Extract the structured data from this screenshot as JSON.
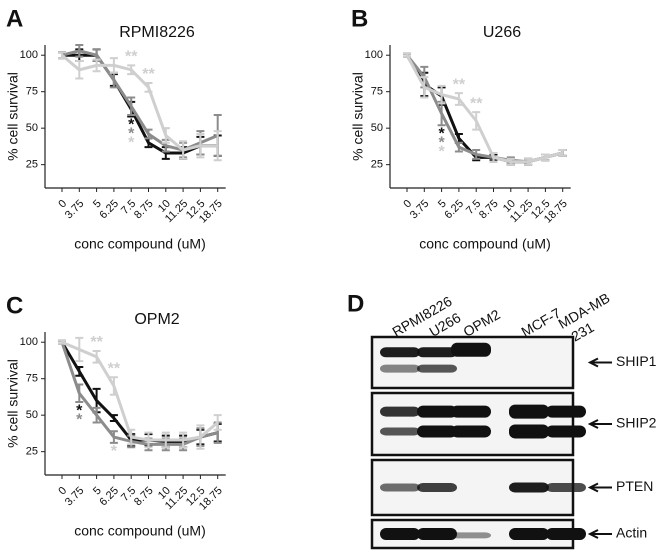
{
  "chart_data": [
    {
      "type": "line",
      "panel_label": "A",
      "title": "RPMI8226",
      "y_label": "% cell survival",
      "x_label": "conc compound (uM)",
      "categories": [
        "0",
        "3.75",
        "5",
        "6.25",
        "7.5",
        "8.75",
        "10",
        "11.25",
        "12.5",
        "18.75"
      ],
      "ylim": [
        9,
        107
      ],
      "yticks": [
        25,
        50,
        75,
        100
      ],
      "series": [
        {
          "color": "#111111",
          "values": [
            100,
            100,
            100,
            83,
            63,
            40,
            33,
            33,
            38,
            38
          ],
          "errors": [
            2,
            4,
            4,
            4,
            5,
            3,
            4,
            4,
            6,
            7
          ]
        },
        {
          "color": "#8c8c8c",
          "values": [
            100,
            103,
            100,
            83,
            65,
            46,
            38,
            35,
            40,
            45
          ],
          "errors": [
            2,
            4,
            4,
            5,
            6,
            3,
            4,
            5,
            8,
            14
          ]
        },
        {
          "color": "#cfcfcf",
          "values": [
            100,
            90,
            93,
            93,
            90,
            78,
            45,
            35,
            38,
            38
          ],
          "errors": [
            2,
            6,
            4,
            5,
            3,
            3,
            5,
            6,
            8,
            10
          ]
        }
      ],
      "annotations": [
        {
          "text": "**",
          "category": "7.5",
          "series": 2,
          "position": "above"
        },
        {
          "text": "**",
          "category": "8.75",
          "series": 2,
          "position": "above"
        },
        {
          "text": "*",
          "category": "7.5",
          "series": 0,
          "position": "below"
        },
        {
          "text": "*",
          "category": "7.5",
          "series": 1,
          "position": "below"
        },
        {
          "text": "*",
          "category": "7.5",
          "series": 2,
          "position": "below"
        }
      ]
    },
    {
      "type": "line",
      "panel_label": "B",
      "title": "U266",
      "y_label": "% cell survival",
      "x_label": "conc compound (uM)",
      "categories": [
        "0",
        "3.75",
        "5",
        "6.25",
        "7.5",
        "8.75",
        "10",
        "11.25",
        "12.5",
        "18.75"
      ],
      "ylim": [
        9,
        107
      ],
      "yticks": [
        25,
        50,
        75,
        100
      ],
      "series": [
        {
          "color": "#111111",
          "values": [
            100,
            80,
            72,
            43,
            30,
            30,
            27,
            27,
            30,
            33
          ],
          "errors": [
            1,
            8,
            6,
            3,
            2,
            2,
            2,
            2,
            2,
            2
          ]
        },
        {
          "color": "#8c8c8c",
          "values": [
            100,
            85,
            60,
            37,
            32,
            30,
            28,
            27,
            30,
            33
          ],
          "errors": [
            1,
            7,
            8,
            3,
            3,
            3,
            2,
            2,
            2,
            2
          ]
        },
        {
          "color": "#cfcfcf",
          "values": [
            100,
            78,
            73,
            70,
            55,
            30,
            27,
            27,
            30,
            33
          ],
          "errors": [
            1,
            7,
            6,
            4,
            6,
            3,
            2,
            2,
            2,
            2
          ]
        }
      ],
      "annotations": [
        {
          "text": "**",
          "category": "6.25",
          "series": 2,
          "position": "above"
        },
        {
          "text": "**",
          "category": "7.5",
          "series": 2,
          "position": "above"
        },
        {
          "text": "*",
          "category": "5",
          "series": 0,
          "position": "below"
        },
        {
          "text": "*",
          "category": "5",
          "series": 1,
          "position": "below"
        },
        {
          "text": "*",
          "category": "5",
          "series": 2,
          "position": "below"
        }
      ]
    },
    {
      "type": "line",
      "panel_label": "C",
      "title": "OPM2",
      "y_label": "% cell survival",
      "x_label": "conc compound (uM)",
      "categories": [
        "0",
        "3.75",
        "5",
        "6.25",
        "7.5",
        "8.75",
        "10",
        "11.25",
        "12.5",
        "18.75"
      ],
      "ylim": [
        9,
        107
      ],
      "yticks": [
        25,
        50,
        75,
        100
      ],
      "series": [
        {
          "color": "#111111",
          "values": [
            100,
            80,
            60,
            48,
            33,
            33,
            32,
            32,
            35,
            38
          ],
          "errors": [
            1,
            3,
            8,
            2,
            4,
            4,
            4,
            4,
            5,
            6
          ]
        },
        {
          "color": "#8c8c8c",
          "values": [
            100,
            65,
            50,
            35,
            32,
            30,
            30,
            30,
            35,
            38
          ],
          "errors": [
            1,
            6,
            5,
            4,
            4,
            4,
            4,
            4,
            6,
            7
          ]
        },
        {
          "color": "#cfcfcf",
          "values": [
            100,
            95,
            90,
            70,
            35,
            33,
            33,
            33,
            35,
            45
          ],
          "errors": [
            1,
            8,
            4,
            6,
            5,
            5,
            5,
            5,
            8,
            5
          ]
        }
      ],
      "annotations": [
        {
          "text": "**",
          "category": "5",
          "series": 2,
          "position": "above"
        },
        {
          "text": "**",
          "category": "6.25",
          "series": 2,
          "position": "above"
        },
        {
          "text": "*",
          "category": "3.75",
          "series": 0,
          "position": "below"
        },
        {
          "text": "*",
          "category": "3.75",
          "series": 1,
          "position": "below"
        },
        {
          "text": "*",
          "category": "6.25",
          "series": 2,
          "position": "below"
        }
      ]
    }
  ],
  "blot": {
    "panel_label": "D",
    "lanes": [
      "RPMI8226",
      "U266",
      "OPM2",
      "MCF-7",
      [
        "MDA-MB",
        "-231"
      ]
    ],
    "rows": [
      "SHIP1",
      "SHIP2",
      "PTEN",
      "Actin"
    ]
  }
}
